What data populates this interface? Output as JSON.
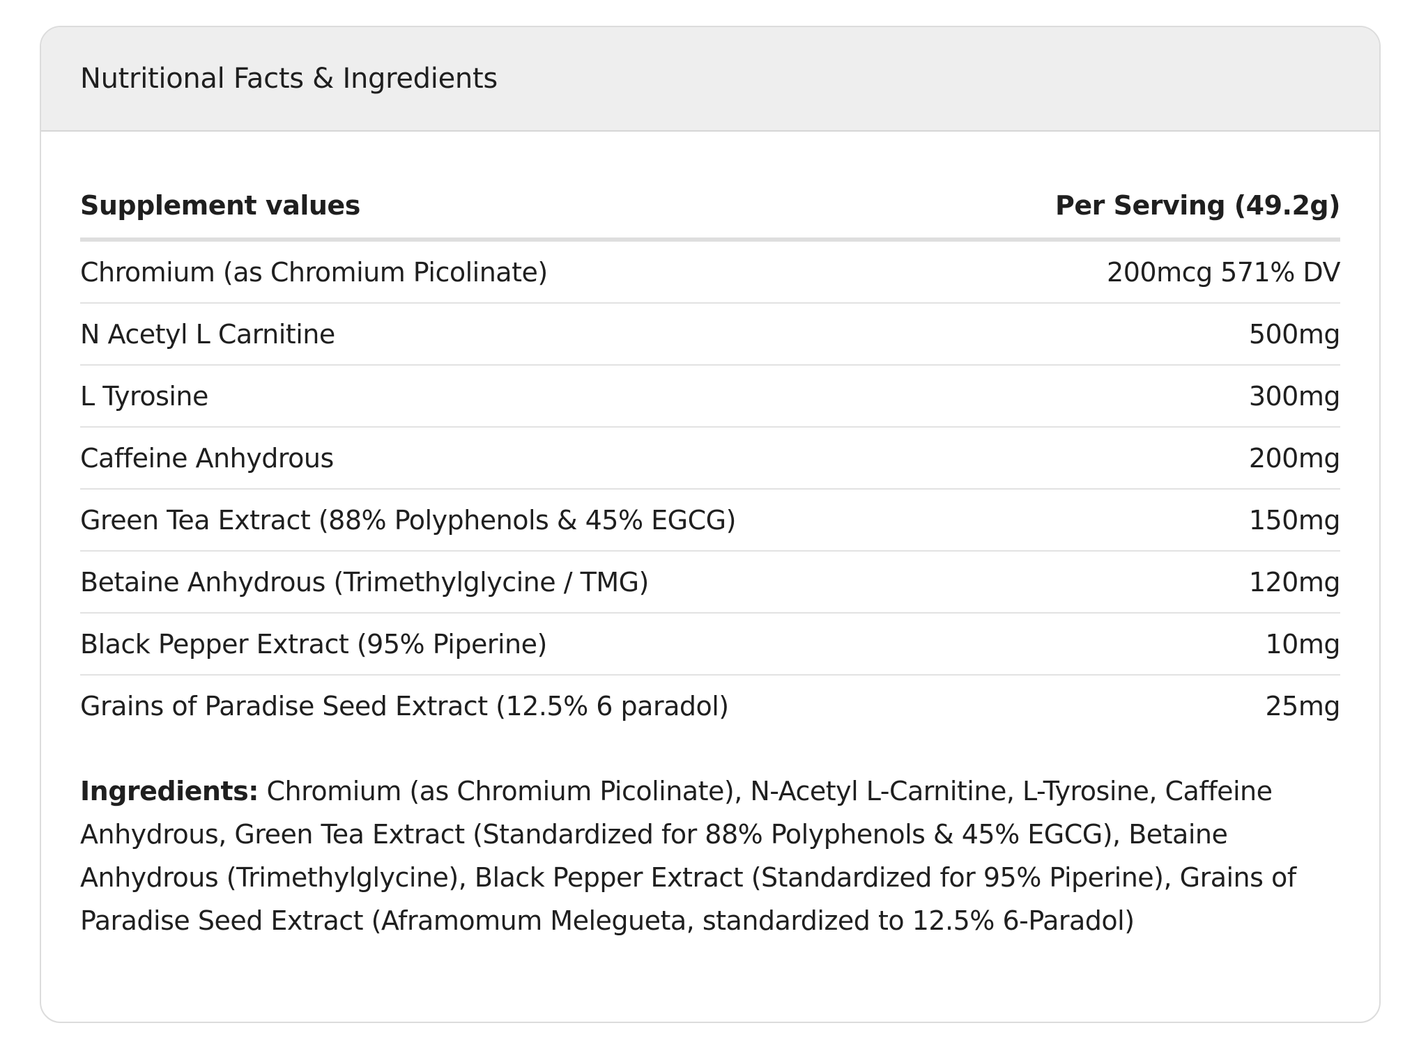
{
  "panel": {
    "title": "Nutritional Facts & Ingredients"
  },
  "table": {
    "headers": {
      "name": "Supplement values",
      "amount": "Per Serving (49.2g)"
    },
    "rows": [
      {
        "name": "Chromium (as Chromium Picolinate)",
        "amount": "200mcg 571% DV"
      },
      {
        "name": "N Acetyl L Carnitine",
        "amount": "500mg"
      },
      {
        "name": "L Tyrosine",
        "amount": "300mg"
      },
      {
        "name": "Caffeine Anhydrous",
        "amount": "200mg"
      },
      {
        "name": "Green Tea Extract (88% Polyphenols & 45% EGCG)",
        "amount": "150mg"
      },
      {
        "name": "Betaine Anhydrous (Trimethylglycine / TMG)",
        "amount": "120mg"
      },
      {
        "name": "Black Pepper Extract (95% Piperine)",
        "amount": "10mg"
      },
      {
        "name": "Grains of Paradise Seed Extract (12.5% 6 paradol)",
        "amount": "25mg"
      }
    ]
  },
  "ingredients": {
    "label": "Ingredients:",
    "text": " Chromium (as Chromium Picolinate), N-Acetyl L-Carnitine, L-Tyrosine, Caffeine Anhydrous, Green Tea Extract (Standardized for 88% Polyphenols & 45% EGCG), Betaine Anhydrous (Trimethylglycine), Black Pepper Extract (Standardized for 95% Piperine), Grains of Paradise Seed Extract (Aframomum Melegueta, standardized to 12.5% 6-Paradol)"
  }
}
